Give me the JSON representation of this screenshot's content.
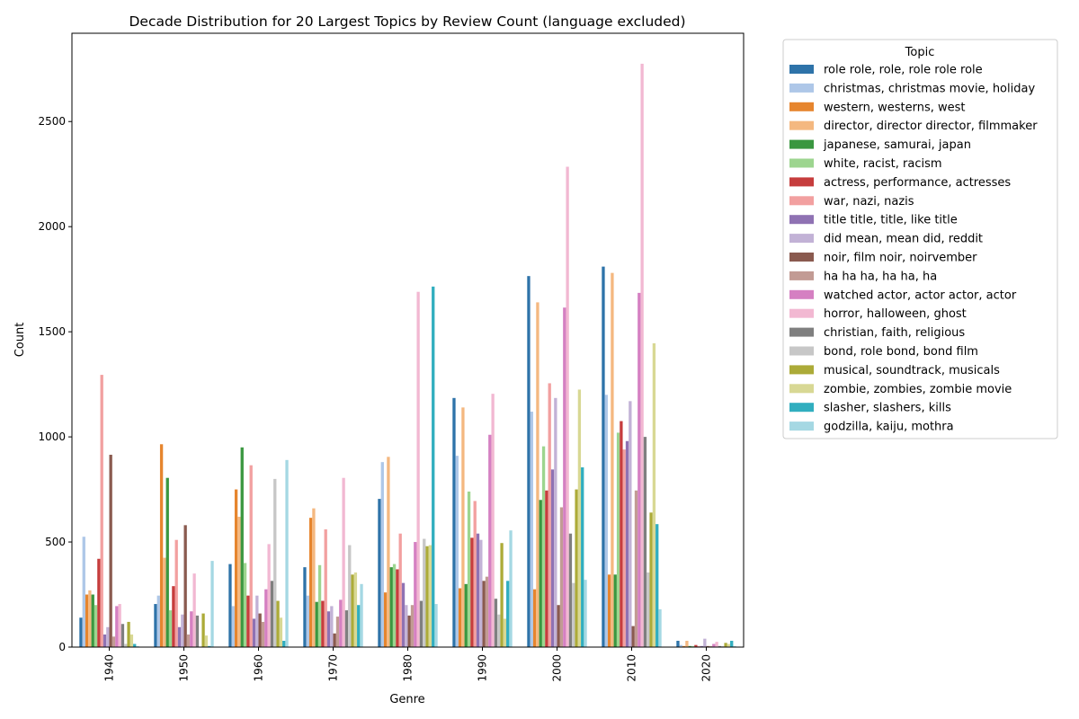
{
  "chart_data": {
    "type": "bar",
    "title": "Decade Distribution for 20 Largest Topics by Review Count (language excluded)",
    "xlabel": "Genre",
    "ylabel": "Count",
    "ylim": [
      0,
      2920
    ],
    "yticks": [
      0,
      500,
      1000,
      1500,
      2000,
      2500
    ],
    "grid": false,
    "legend_title": "Topic",
    "legend_position": "outside-right",
    "categories": [
      "1940",
      "1950",
      "1960",
      "1970",
      "1980",
      "1990",
      "2000",
      "2010",
      "2020"
    ],
    "series": [
      {
        "name": "role role, role, role role role",
        "color": "#2e73a9",
        "values": [
          140,
          205,
          395,
          380,
          705,
          1185,
          1765,
          1810,
          30
        ]
      },
      {
        "name": "christmas, christmas movie, holiday",
        "color": "#aec7e8",
        "values": [
          525,
          245,
          195,
          245,
          880,
          910,
          1120,
          1200,
          10
        ]
      },
      {
        "name": "western, westerns, west",
        "color": "#e6852e",
        "values": [
          250,
          965,
          750,
          615,
          260,
          280,
          275,
          345,
          5
        ]
      },
      {
        "name": "director, director director, filmmaker",
        "color": "#f4b880",
        "values": [
          270,
          425,
          620,
          660,
          905,
          1140,
          1640,
          1780,
          30
        ]
      },
      {
        "name": "japanese, samurai, japan",
        "color": "#3a9740",
        "values": [
          250,
          805,
          950,
          215,
          380,
          300,
          700,
          345,
          5
        ]
      },
      {
        "name": "white, racist, racism",
        "color": "#9dd58f",
        "values": [
          200,
          175,
          400,
          390,
          395,
          740,
          955,
          1020,
          5
        ]
      },
      {
        "name": "actress, performance, actresses",
        "color": "#c63d3d",
        "values": [
          420,
          290,
          245,
          220,
          370,
          520,
          745,
          1075,
          10
        ]
      },
      {
        "name": "war, nazi, nazis",
        "color": "#f2a0a0",
        "values": [
          1295,
          510,
          865,
          560,
          540,
          695,
          1255,
          940,
          5
        ]
      },
      {
        "name": "title title, title, like title",
        "color": "#8f72b3",
        "values": [
          60,
          95,
          135,
          170,
          305,
          540,
          845,
          980,
          5
        ]
      },
      {
        "name": "did mean, mean did, reddit",
        "color": "#c2b2d6",
        "values": [
          95,
          155,
          245,
          195,
          200,
          510,
          1185,
          1170,
          40
        ]
      },
      {
        "name": "noir, film noir, noirvember",
        "color": "#8a5a4f",
        "values": [
          915,
          580,
          160,
          65,
          150,
          315,
          200,
          100,
          5
        ]
      },
      {
        "name": "ha ha ha, ha ha, ha",
        "color": "#c29b94",
        "values": [
          50,
          60,
          120,
          145,
          200,
          335,
          665,
          745,
          5
        ]
      },
      {
        "name": "watched actor, actor actor, actor",
        "color": "#d580c2",
        "values": [
          195,
          170,
          275,
          225,
          500,
          1010,
          1615,
          1685,
          15
        ]
      },
      {
        "name": "horror, halloween, ghost",
        "color": "#f2b8d2",
        "values": [
          205,
          350,
          490,
          805,
          1690,
          1205,
          2285,
          2775,
          25
        ]
      },
      {
        "name": "christian, faith, religious",
        "color": "#7f7f7f",
        "values": [
          110,
          150,
          315,
          175,
          220,
          230,
          540,
          1000,
          5
        ]
      },
      {
        "name": "bond, role bond, bond film",
        "color": "#c7c7c7",
        "values": [
          15,
          0,
          800,
          485,
          515,
          155,
          305,
          355,
          5
        ]
      },
      {
        "name": "musical, soundtrack, musicals",
        "color": "#acab38",
        "values": [
          120,
          160,
          220,
          345,
          480,
          495,
          750,
          640,
          20
        ]
      },
      {
        "name": "zombie, zombies, zombie movie",
        "color": "#d8d894",
        "values": [
          60,
          55,
          140,
          355,
          485,
          135,
          1225,
          1445,
          15
        ]
      },
      {
        "name": "slasher, slashers, kills",
        "color": "#31aebf",
        "values": [
          15,
          5,
          30,
          200,
          1715,
          315,
          855,
          585,
          30
        ]
      },
      {
        "name": "godzilla, kaiju, mothra",
        "color": "#a5d8e3",
        "values": [
          5,
          410,
          890,
          300,
          205,
          555,
          320,
          180,
          5
        ]
      }
    ]
  }
}
